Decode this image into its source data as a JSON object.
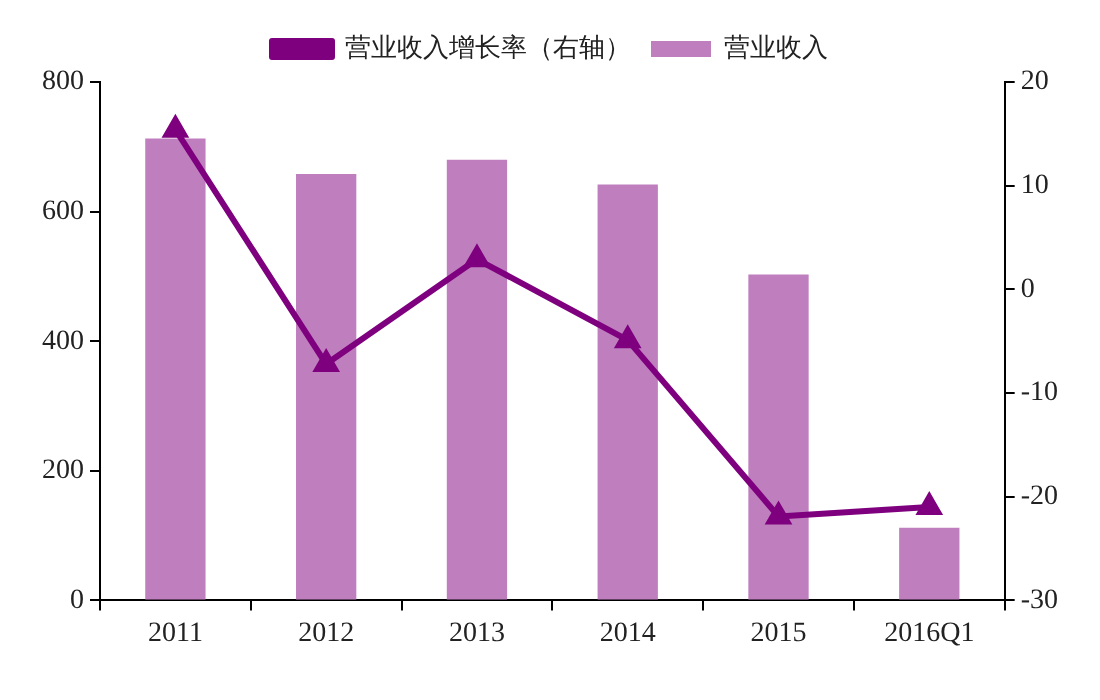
{
  "chart_data": {
    "type": "bar",
    "categories": [
      "2011",
      "2012",
      "2013",
      "2014",
      "2015",
      "2016Q1"
    ],
    "series": [
      {
        "name": "营业收入",
        "color": "#bf7fbf",
        "values": [
          713,
          658,
          680,
          642,
          503,
          112
        ]
      },
      {
        "name": "营业收入增长率（右轴）",
        "type": "line",
        "axis": "y2",
        "color": "#7f007f",
        "values": [
          15.4,
          -7.2,
          2.9,
          -4.9,
          -21.9,
          -21.0
        ]
      }
    ],
    "ylim": [
      0,
      800
    ],
    "yticks": [
      0,
      200,
      400,
      600,
      800
    ],
    "y2lim": [
      -30,
      20
    ],
    "y2ticks": [
      -30,
      -20,
      -10,
      0,
      10,
      20
    ],
    "grid": false,
    "legend": "top",
    "marker": "triangle",
    "line_style": "solid"
  }
}
